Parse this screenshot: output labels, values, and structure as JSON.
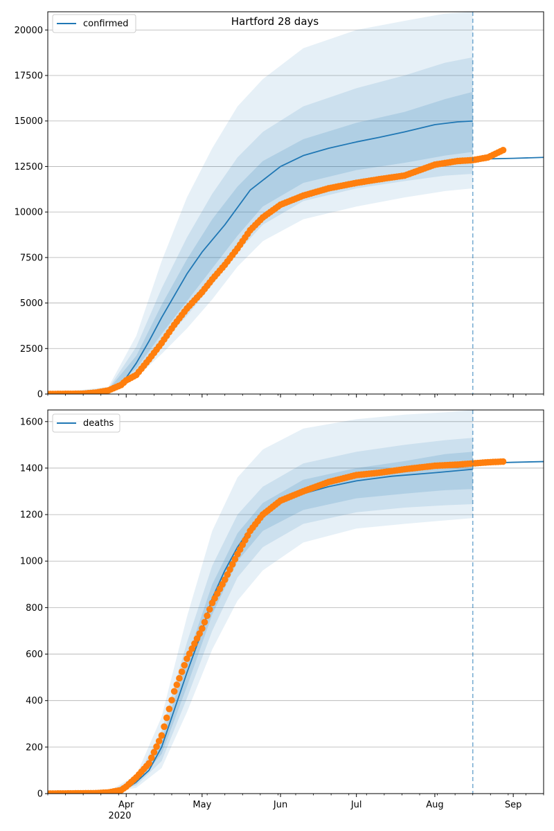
{
  "figure": {
    "title": "Hartford 28 days",
    "x_tick_labels": [
      "Apr",
      "May",
      "Jun",
      "Jul",
      "Aug",
      "Sep"
    ],
    "x_year_label": "2020"
  },
  "colors": {
    "model": "#1f77b4",
    "observed": "#ff7f0e",
    "band": "#1f77b4",
    "grid": "#b0b0b0",
    "axes": "#000000"
  },
  "chart_data": [
    {
      "type": "line",
      "name": "confirmed",
      "legend": "confirmed",
      "legend_position": "upper-left",
      "title": "Hartford 28 days",
      "x_start": "2020-03-01",
      "x_end": "2020-09-13",
      "x_ticks": [
        "2020-04-01",
        "2020-05-01",
        "2020-06-01",
        "2020-07-01",
        "2020-08-01",
        "2020-09-01"
      ],
      "ylim": [
        0,
        21000
      ],
      "y_ticks": [
        0,
        2500,
        5000,
        7500,
        10000,
        12500,
        15000,
        17500,
        20000
      ],
      "grid": "horizontal",
      "forecast_date": "2020-08-16",
      "series": [
        {
          "name": "confirmed",
          "kind": "model-median",
          "x": [
            "2020-03-01",
            "2020-03-20",
            "2020-03-25",
            "2020-03-31",
            "2020-04-05",
            "2020-04-10",
            "2020-04-15",
            "2020-04-20",
            "2020-04-25",
            "2020-05-01",
            "2020-05-10",
            "2020-05-20",
            "2020-06-01",
            "2020-06-10",
            "2020-06-20",
            "2020-07-01",
            "2020-07-10",
            "2020-07-20",
            "2020-08-01",
            "2020-08-10",
            "2020-08-16"
          ],
          "values": [
            0,
            60,
            200,
            700,
            1700,
            2900,
            4200,
            5400,
            6600,
            7800,
            9300,
            11200,
            12500,
            13100,
            13500,
            13850,
            14100,
            14400,
            14800,
            14950,
            15000
          ]
        },
        {
          "name": "confirmed",
          "kind": "model-extension",
          "x": [
            "2020-08-16",
            "2020-09-01",
            "2020-09-13"
          ],
          "values": [
            12900,
            12950,
            13000
          ]
        },
        {
          "name": "observed",
          "kind": "observed-points",
          "x": [
            "2020-03-01",
            "2020-03-15",
            "2020-03-20",
            "2020-03-25",
            "2020-03-30",
            "2020-04-01",
            "2020-04-05",
            "2020-04-10",
            "2020-04-15",
            "2020-04-20",
            "2020-04-25",
            "2020-05-01",
            "2020-05-05",
            "2020-05-10",
            "2020-05-15",
            "2020-05-20",
            "2020-05-25",
            "2020-06-01",
            "2020-06-10",
            "2020-06-20",
            "2020-07-01",
            "2020-07-10",
            "2020-07-20",
            "2020-08-01",
            "2020-08-10",
            "2020-08-16",
            "2020-08-22",
            "2020-08-28"
          ],
          "values": [
            0,
            20,
            80,
            200,
            500,
            750,
            1050,
            1900,
            2800,
            3800,
            4700,
            5600,
            6300,
            7100,
            8000,
            9000,
            9700,
            10400,
            10900,
            11300,
            11600,
            11800,
            12000,
            12600,
            12800,
            12850,
            13000,
            13400
          ]
        }
      ],
      "bands": [
        {
          "level": "outer",
          "x": [
            "2020-03-01",
            "2020-03-25",
            "2020-04-05",
            "2020-04-15",
            "2020-04-25",
            "2020-05-05",
            "2020-05-15",
            "2020-05-25",
            "2020-06-10",
            "2020-07-01",
            "2020-07-20",
            "2020-08-05",
            "2020-08-16"
          ],
          "lower": [
            0,
            100,
            900,
            2200,
            3600,
            5200,
            7000,
            8400,
            9600,
            10300,
            10800,
            11150,
            11300
          ],
          "upper": [
            0,
            400,
            3200,
            7300,
            10800,
            13500,
            15800,
            17300,
            19000,
            20000,
            20500,
            20900,
            21000
          ]
        },
        {
          "level": "middle",
          "x": [
            "2020-03-01",
            "2020-03-25",
            "2020-04-05",
            "2020-04-15",
            "2020-04-25",
            "2020-05-05",
            "2020-05-15",
            "2020-05-25",
            "2020-06-10",
            "2020-07-01",
            "2020-07-20",
            "2020-08-05",
            "2020-08-16"
          ],
          "lower": [
            0,
            130,
            1150,
            2800,
            4300,
            6000,
            7800,
            9300,
            10600,
            11300,
            11700,
            12000,
            12100
          ],
          "upper": [
            0,
            300,
            2600,
            5800,
            8600,
            11000,
            13000,
            14400,
            15800,
            16800,
            17500,
            18200,
            18500
          ]
        },
        {
          "level": "inner",
          "x": [
            "2020-03-01",
            "2020-03-25",
            "2020-04-05",
            "2020-04-15",
            "2020-04-25",
            "2020-05-05",
            "2020-05-15",
            "2020-05-25",
            "2020-06-10",
            "2020-07-01",
            "2020-07-20",
            "2020-08-05",
            "2020-08-16"
          ],
          "lower": [
            0,
            160,
            1400,
            3300,
            5100,
            6900,
            8700,
            10300,
            11600,
            12300,
            12700,
            13100,
            13300
          ],
          "upper": [
            0,
            250,
            2100,
            4900,
            7400,
            9600,
            11400,
            12800,
            14000,
            14900,
            15500,
            16200,
            16600
          ]
        }
      ]
    },
    {
      "type": "line",
      "name": "deaths",
      "legend": "deaths",
      "legend_position": "upper-left",
      "x_start": "2020-03-01",
      "x_end": "2020-09-13",
      "x_ticks": [
        "2020-04-01",
        "2020-05-01",
        "2020-06-01",
        "2020-07-01",
        "2020-08-01",
        "2020-09-01"
      ],
      "ylim": [
        0,
        1650
      ],
      "y_ticks": [
        0,
        200,
        400,
        600,
        800,
        1000,
        1200,
        1400,
        1600
      ],
      "grid": "horizontal",
      "forecast_date": "2020-08-16",
      "series": [
        {
          "name": "deaths",
          "kind": "model-median",
          "x": [
            "2020-03-01",
            "2020-03-25",
            "2020-04-01",
            "2020-04-05",
            "2020-04-10",
            "2020-04-15",
            "2020-04-20",
            "2020-04-25",
            "2020-05-01",
            "2020-05-05",
            "2020-05-10",
            "2020-05-15",
            "2020-05-20",
            "2020-05-25",
            "2020-06-01",
            "2020-06-10",
            "2020-06-20",
            "2020-07-01",
            "2020-07-15",
            "2020-08-01",
            "2020-08-16"
          ],
          "values": [
            0,
            5,
            20,
            50,
            100,
            200,
            360,
            520,
            700,
            840,
            960,
            1060,
            1140,
            1200,
            1250,
            1290,
            1320,
            1345,
            1365,
            1380,
            1395
          ]
        },
        {
          "name": "deaths",
          "kind": "model-extension",
          "x": [
            "2020-08-16",
            "2020-09-01",
            "2020-09-13"
          ],
          "values": [
            1420,
            1425,
            1428
          ]
        },
        {
          "name": "observed",
          "kind": "observed-points",
          "x": [
            "2020-03-01",
            "2020-03-20",
            "2020-03-25",
            "2020-03-30",
            "2020-04-01",
            "2020-04-05",
            "2020-04-10",
            "2020-04-15",
            "2020-04-20",
            "2020-04-25",
            "2020-05-01",
            "2020-05-05",
            "2020-05-10",
            "2020-05-15",
            "2020-05-20",
            "2020-05-25",
            "2020-06-01",
            "2020-06-10",
            "2020-06-20",
            "2020-07-01",
            "2020-07-10",
            "2020-07-20",
            "2020-08-01",
            "2020-08-10",
            "2020-08-16",
            "2020-08-22",
            "2020-08-28"
          ],
          "values": [
            0,
            2,
            5,
            15,
            30,
            70,
            130,
            250,
            440,
            580,
            710,
            820,
            920,
            1030,
            1130,
            1200,
            1260,
            1300,
            1340,
            1370,
            1380,
            1395,
            1410,
            1415,
            1420,
            1425,
            1428
          ]
        }
      ],
      "bands": [
        {
          "level": "outer",
          "x": [
            "2020-03-01",
            "2020-03-25",
            "2020-04-05",
            "2020-04-15",
            "2020-04-25",
            "2020-05-05",
            "2020-05-15",
            "2020-05-25",
            "2020-06-10",
            "2020-07-01",
            "2020-07-20",
            "2020-08-05",
            "2020-08-16"
          ],
          "lower": [
            0,
            3,
            25,
            110,
            350,
            620,
            830,
            960,
            1080,
            1140,
            1160,
            1175,
            1185
          ],
          "upper": [
            0,
            10,
            80,
            330,
            760,
            1130,
            1360,
            1480,
            1570,
            1610,
            1630,
            1640,
            1650
          ]
        },
        {
          "level": "middle",
          "x": [
            "2020-03-01",
            "2020-03-25",
            "2020-04-05",
            "2020-04-15",
            "2020-04-25",
            "2020-05-05",
            "2020-05-15",
            "2020-05-25",
            "2020-06-10",
            "2020-07-01",
            "2020-07-20",
            "2020-08-05",
            "2020-08-16"
          ],
          "lower": [
            0,
            4,
            35,
            140,
            410,
            700,
            930,
            1060,
            1160,
            1210,
            1230,
            1240,
            1245
          ],
          "upper": [
            0,
            8,
            65,
            270,
            650,
            980,
            1200,
            1320,
            1420,
            1470,
            1500,
            1520,
            1530
          ]
        },
        {
          "level": "inner",
          "x": [
            "2020-03-01",
            "2020-03-25",
            "2020-04-05",
            "2020-04-15",
            "2020-04-25",
            "2020-05-05",
            "2020-05-15",
            "2020-05-25",
            "2020-06-10",
            "2020-07-01",
            "2020-07-20",
            "2020-08-05",
            "2020-08-16"
          ],
          "lower": [
            0,
            4,
            42,
            170,
            460,
            770,
            1000,
            1130,
            1220,
            1270,
            1290,
            1305,
            1310
          ],
          "upper": [
            0,
            7,
            58,
            230,
            580,
            900,
            1120,
            1250,
            1350,
            1400,
            1430,
            1460,
            1470
          ]
        }
      ]
    }
  ]
}
